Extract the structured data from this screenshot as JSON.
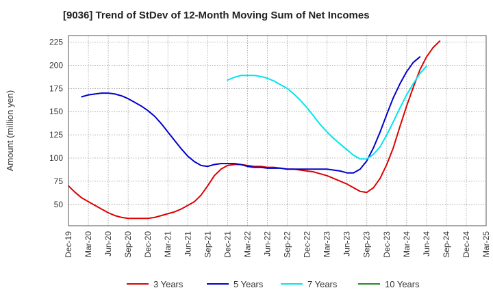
{
  "chart_data": {
    "type": "line",
    "title": "[9036]  Trend of StDev of 12-Month Moving Sum of Net Incomes",
    "xlabel": "",
    "ylabel": "Amount (million yen)",
    "ylim": [
      27,
      232
    ],
    "y_ticks": [
      50,
      75,
      100,
      125,
      150,
      175,
      200,
      225
    ],
    "x_ticks": [
      "Dec-19",
      "Mar-20",
      "Jun-20",
      "Sep-20",
      "Dec-20",
      "Mar-21",
      "Jun-21",
      "Sep-21",
      "Dec-21",
      "Mar-22",
      "Jun-22",
      "Sep-22",
      "Dec-22",
      "Mar-23",
      "Jun-23",
      "Sep-23",
      "Dec-23",
      "Mar-24",
      "Jun-24",
      "Sep-24",
      "Dec-24",
      "Mar-25"
    ],
    "grid": true,
    "legend_position": "bottom",
    "series": [
      {
        "name": "3 Years",
        "color": "#dd0000",
        "start_index": 0,
        "values": [
          70,
          63,
          57,
          53,
          49,
          45,
          41,
          38,
          36,
          35,
          35,
          35,
          35,
          36,
          38,
          40,
          42,
          45,
          49,
          53,
          60,
          70,
          81,
          88,
          92,
          93,
          93,
          92,
          91,
          91,
          90,
          90,
          89,
          88,
          88,
          87,
          86,
          85,
          83,
          81,
          78,
          75,
          72,
          68,
          64,
          63,
          68,
          78,
          93,
          111,
          134,
          156,
          176,
          195,
          209,
          219,
          226
        ]
      },
      {
        "name": "5 Years",
        "color": "#0000cc",
        "start_index": 2,
        "values": [
          166,
          168,
          169,
          170,
          170,
          169,
          167,
          164,
          160,
          156,
          151,
          145,
          137,
          128,
          119,
          110,
          102,
          96,
          92,
          91,
          93,
          94,
          94,
          94,
          93,
          91,
          90,
          90,
          89,
          89,
          89,
          88,
          88,
          88,
          88,
          88,
          88,
          88,
          87,
          86,
          84,
          84,
          88,
          97,
          111,
          128,
          147,
          165,
          180,
          193,
          203,
          209
        ]
      },
      {
        "name": "7 Years",
        "color": "#00e5ee",
        "start_index": 24,
        "values": [
          184,
          187,
          189,
          189,
          189,
          188,
          186,
          183,
          179,
          175,
          169,
          162,
          154,
          145,
          136,
          128,
          121,
          115,
          109,
          103,
          99,
          99,
          104,
          112,
          125,
          139,
          154,
          168,
          180,
          191,
          199
        ]
      },
      {
        "name": "10 Years",
        "color": "#228b22",
        "start_index": 0,
        "values": []
      }
    ]
  }
}
